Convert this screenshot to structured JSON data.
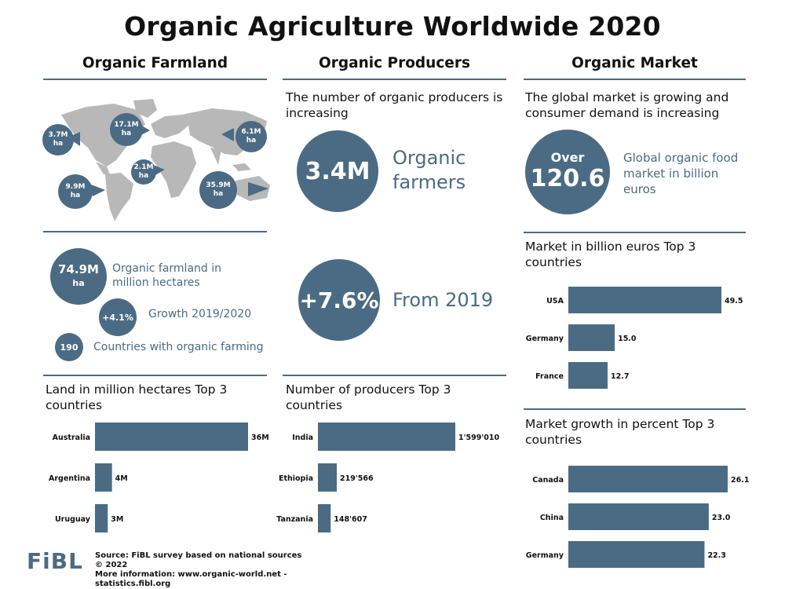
{
  "title": "Organic Agriculture Worldwide 2020",
  "farmland": {
    "heading": "Organic Farmland",
    "map_labels": [
      {
        "value": "3.7M",
        "unit": "ha"
      },
      {
        "value": "17.1M",
        "unit": "ha"
      },
      {
        "value": "6.1M",
        "unit": "ha"
      },
      {
        "value": "2.1M",
        "unit": "ha"
      },
      {
        "value": "9.9M",
        "unit": "ha"
      },
      {
        "value": "35.9M",
        "unit": "ha"
      }
    ],
    "stat_area_value": "74.9M",
    "stat_area_unit": "ha",
    "stat_area_label": "Organic farmland in million hectares",
    "stat_growth_value": "+4.1%",
    "stat_growth_label": "Growth 2019/2020",
    "stat_countries_value": "190",
    "stat_countries_label": "Countries with organic farming"
  },
  "producers": {
    "heading": "Organic Producers",
    "intro": "The number of organic producers is increasing",
    "farmers_value": "3.4M",
    "farmers_label": "Organic farmers",
    "growth_value": "+7.6%",
    "growth_label": "From 2019"
  },
  "market": {
    "heading": "Organic Market",
    "intro": "The global market is growing and consumer demand is increasing",
    "over_label": "Over",
    "market_value": "120.6",
    "market_label": "Global organic food market in billion euros"
  },
  "footer": {
    "logo": "FiBL",
    "source": "Source: FiBL survey based on national sources",
    "copyright": "© 2022",
    "more_info": "More information: www.organic-world.net - statistics.fibl.org"
  },
  "colors": {
    "accent": "#4b6b84",
    "map": "#b8b8b8"
  },
  "chart_data": [
    {
      "type": "bar",
      "orientation": "horizontal",
      "title": "Land in million hectares Top 3 countries",
      "categories": [
        "Australia",
        "Argentina",
        "Uruguay"
      ],
      "values": [
        36,
        4,
        3
      ],
      "value_labels": [
        "36M",
        "4M",
        "3M"
      ],
      "xlim": [
        0,
        36
      ]
    },
    {
      "type": "bar",
      "orientation": "horizontal",
      "title": "Number of producers Top 3 countries",
      "categories": [
        "India",
        "Ethiopia",
        "Tanzania"
      ],
      "values": [
        1599010,
        219566,
        148607
      ],
      "value_labels": [
        "1'599'010",
        "219'566",
        "148'607"
      ],
      "xlim": [
        0,
        1599010
      ]
    },
    {
      "type": "bar",
      "orientation": "horizontal",
      "title": "Market in billion euros Top 3 countries",
      "categories": [
        "USA",
        "Germany",
        "France"
      ],
      "values": [
        49.5,
        15.0,
        12.7
      ],
      "value_labels": [
        "49.5",
        "15.0",
        "12.7"
      ],
      "xlim": [
        0,
        49.5
      ]
    },
    {
      "type": "bar",
      "orientation": "horizontal",
      "title": "Market growth in percent Top 3 countries",
      "categories": [
        "Canada",
        "China",
        "Germany"
      ],
      "values": [
        26.1,
        23.0,
        22.3
      ],
      "value_labels": [
        "26.1",
        "23.0",
        "22.3"
      ],
      "xlim": [
        0,
        26.1
      ]
    }
  ]
}
